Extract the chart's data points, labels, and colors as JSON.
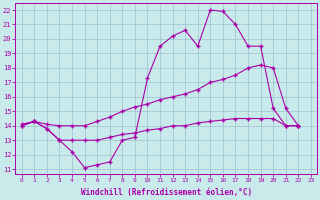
{
  "background_color": "#c8eaea",
  "line_color": "#aa00aa",
  "grid_color": "#9bbccc",
  "xlabel": "Windchill (Refroidissement éolien,°C)",
  "xlim_min": -0.5,
  "xlim_max": 23.5,
  "ylim_min": 10.7,
  "ylim_max": 22.5,
  "xticks": [
    0,
    1,
    2,
    3,
    4,
    5,
    6,
    7,
    8,
    9,
    10,
    11,
    12,
    13,
    14,
    15,
    16,
    17,
    18,
    19,
    20,
    21,
    22,
    23
  ],
  "yticks": [
    11,
    12,
    13,
    14,
    15,
    16,
    17,
    18,
    19,
    20,
    21,
    22
  ],
  "line1": {
    "x": [
      0,
      1,
      2,
      3,
      4,
      5,
      6,
      7,
      8,
      9,
      10,
      11,
      12,
      13,
      14,
      15,
      16,
      17,
      18,
      19,
      20,
      21,
      22
    ],
    "y": [
      14.0,
      14.3,
      13.8,
      13.0,
      12.2,
      11.1,
      11.3,
      11.5,
      13.0,
      13.2,
      17.3,
      19.5,
      20.2,
      20.6,
      19.5,
      22.0,
      21.9,
      21.0,
      19.5,
      19.5,
      15.2,
      14.0,
      14.0
    ]
  },
  "line2": {
    "x": [
      0,
      1,
      2,
      3,
      4,
      5,
      6,
      7,
      8,
      9,
      10,
      11,
      12,
      13,
      14,
      15,
      16,
      17,
      18,
      19,
      20,
      21,
      22
    ],
    "y": [
      14.1,
      14.3,
      14.1,
      14.0,
      14.0,
      14.0,
      14.3,
      14.6,
      15.0,
      15.3,
      15.5,
      15.8,
      16.0,
      16.2,
      16.5,
      17.0,
      17.2,
      17.5,
      18.0,
      18.2,
      18.0,
      15.2,
      14.0
    ]
  },
  "line3": {
    "x": [
      0,
      1,
      2,
      3,
      4,
      5,
      6,
      7,
      8,
      9,
      10,
      11,
      12,
      13,
      14,
      15,
      16,
      17,
      18,
      19,
      20,
      21,
      22
    ],
    "y": [
      14.0,
      14.3,
      13.8,
      13.0,
      13.0,
      13.0,
      13.0,
      13.2,
      13.4,
      13.5,
      13.7,
      13.8,
      14.0,
      14.0,
      14.2,
      14.3,
      14.4,
      14.5,
      14.5,
      14.5,
      14.5,
      14.0,
      14.0
    ]
  }
}
